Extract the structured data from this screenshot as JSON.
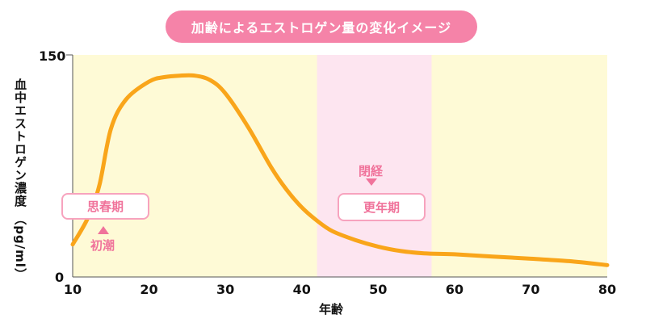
{
  "chart_data": {
    "type": "line",
    "title": "加齢によるエストロゲン量の変化イメージ",
    "xlabel": "年齢",
    "ylabel": "血中エストロゲン濃度 （pg/ml）",
    "xlim": [
      10,
      80
    ],
    "ylim": [
      0,
      150
    ],
    "x_ticks": [
      "10",
      "20",
      "30",
      "40",
      "50",
      "60",
      "70",
      "80"
    ],
    "y_ticks": [
      "0",
      "150"
    ],
    "series": [
      {
        "x": [
          10,
          12,
          13.5,
          15,
          17,
          20,
          22,
          24,
          26,
          28,
          30,
          33,
          36,
          38,
          40,
          42,
          44,
          47,
          50,
          53,
          56,
          60,
          65,
          70,
          75,
          80
        ],
        "y": [
          22,
          40,
          62,
          100,
          120,
          132,
          135,
          136,
          136,
          133,
          124,
          101,
          74,
          59,
          47,
          38,
          31,
          25,
          20.5,
          17.5,
          16,
          15.3,
          13.8,
          12.3,
          10.7,
          8
        ]
      }
    ],
    "regions": [
      {
        "name": "更年期",
        "x_start": 42,
        "x_end": 57,
        "color": "#fde5f0"
      }
    ],
    "background_color": "#fefad6",
    "line_color": "#f9a51a",
    "annotations": {
      "puberty_label": "思春期",
      "menarche_label": "初潮",
      "menopause_label": "閉経",
      "menopause_period_label": "更年期"
    }
  }
}
